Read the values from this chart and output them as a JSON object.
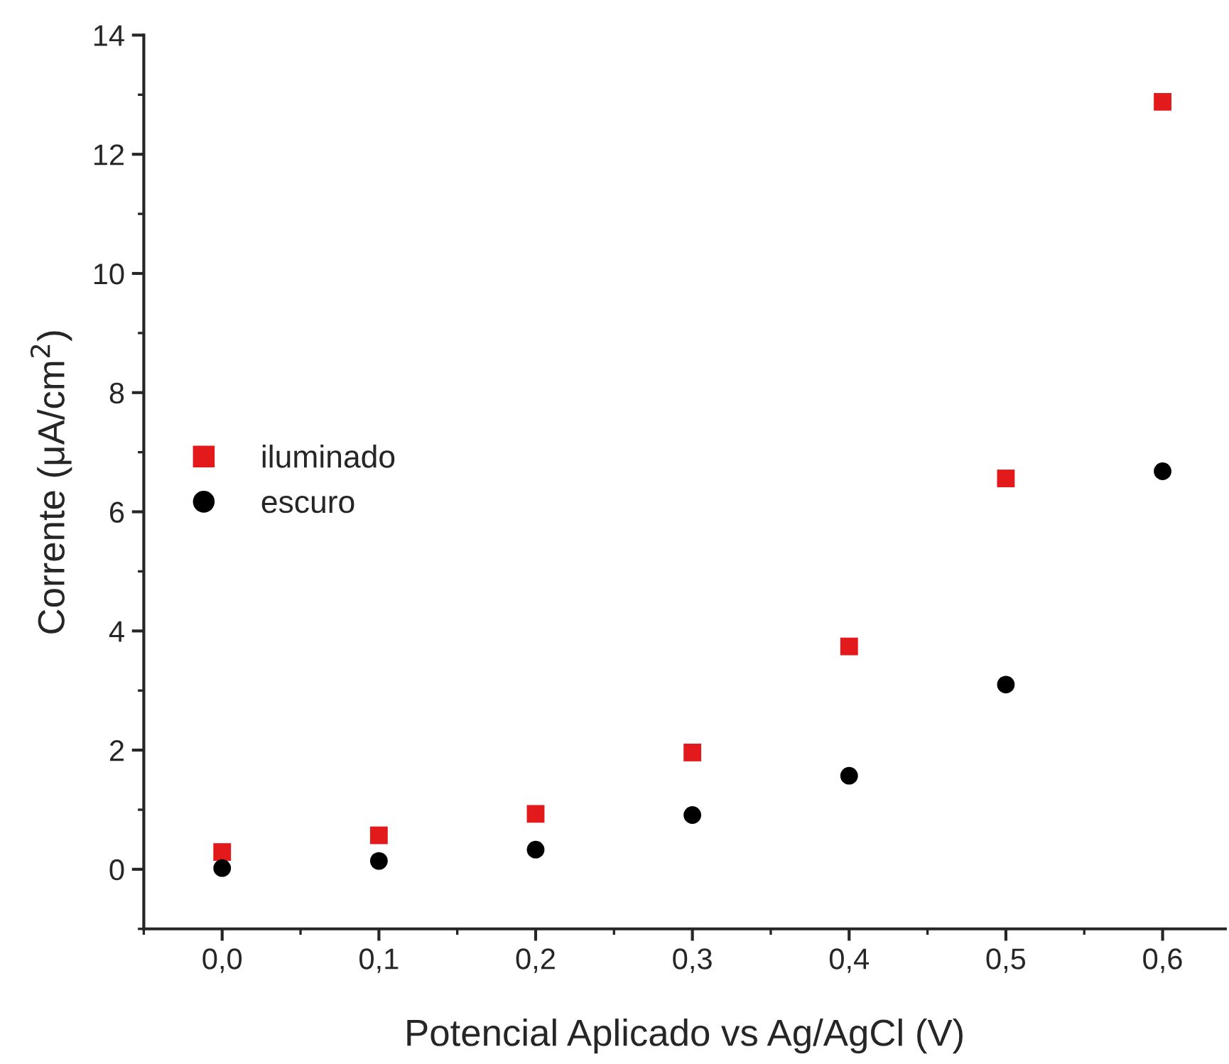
{
  "chart_data": {
    "type": "scatter",
    "xlabel": "Potencial Aplicado vs Ag/AgCl (V)",
    "ylabel": "Corrente (μA/cm$^{2}$)",
    "x": [
      0.0,
      0.1,
      0.2,
      0.3,
      0.4,
      0.5,
      0.6
    ],
    "series": [
      {
        "name": "iluminado",
        "color": "#e31a1c",
        "marker": "square",
        "values": [
          0.29,
          0.57,
          0.93,
          1.96,
          3.74,
          6.56,
          12.88
        ]
      },
      {
        "name": "escuro",
        "color": "#000000",
        "marker": "circle",
        "values": [
          0.02,
          0.14,
          0.33,
          0.91,
          1.57,
          3.1,
          6.68
        ]
      }
    ],
    "xlim": [
      -0.05,
      0.64
    ],
    "ylim": [
      -1,
      14
    ],
    "xticks": [
      {
        "value": 0.0,
        "label": "0,0"
      },
      {
        "value": 0.1,
        "label": "0,1"
      },
      {
        "value": 0.2,
        "label": "0,2"
      },
      {
        "value": 0.3,
        "label": "0,3"
      },
      {
        "value": 0.4,
        "label": "0,4"
      },
      {
        "value": 0.5,
        "label": "0,5"
      },
      {
        "value": 0.6,
        "label": "0,6"
      }
    ],
    "yticks": [
      0,
      2,
      4,
      6,
      8,
      10,
      12,
      14
    ],
    "legend": "center left",
    "grid": false
  }
}
